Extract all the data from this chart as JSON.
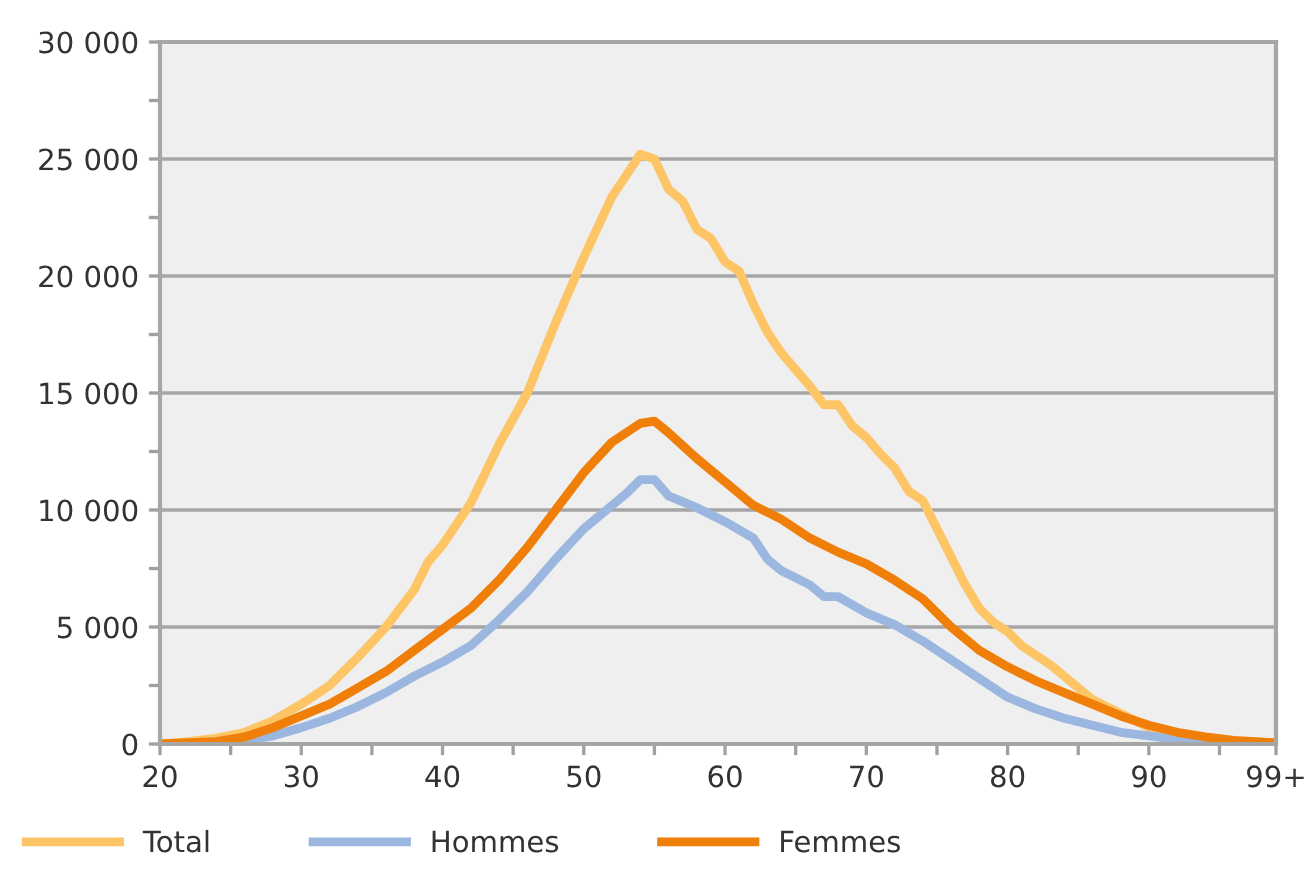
{
  "chart_data": {
    "type": "line",
    "xlim": [
      20,
      99
    ],
    "xticks": [
      20,
      {
        "value": 25,
        "label": null
      },
      30,
      {
        "value": 35,
        "label": null
      },
      40,
      {
        "value": 45,
        "label": null
      },
      50,
      {
        "value": 55,
        "label": null
      },
      60,
      {
        "value": 65,
        "label": null
      },
      70,
      {
        "value": 75,
        "label": null
      },
      80,
      {
        "value": 85,
        "label": null
      },
      90,
      {
        "value": 95,
        "label": null
      },
      {
        "value": 99,
        "label": "99+"
      }
    ],
    "ylim": [
      0,
      30000
    ],
    "yticks": [
      {
        "value": 0,
        "label": "0"
      },
      {
        "value": 2500,
        "label": null
      },
      {
        "value": 5000,
        "label": "5 000"
      },
      {
        "value": 7500,
        "label": null
      },
      {
        "value": 10000,
        "label": "10 000"
      },
      {
        "value": 12500,
        "label": null
      },
      {
        "value": 15000,
        "label": "15 000"
      },
      {
        "value": 17500,
        "label": null
      },
      {
        "value": 20000,
        "label": "20 000"
      },
      {
        "value": 22500,
        "label": null
      },
      {
        "value": 25000,
        "label": "25 000"
      },
      {
        "value": 27500,
        "label": null
      },
      {
        "value": 30000,
        "label": "30 000"
      }
    ],
    "grid": "y",
    "legend": "bottom",
    "series": [
      {
        "name": "Total",
        "color": "#fdc566",
        "x": [
          20,
          22,
          24,
          26,
          28,
          30,
          32,
          34,
          36,
          38,
          39,
          40,
          42,
          44,
          46,
          48,
          50,
          52,
          53,
          54,
          55,
          56,
          57,
          58,
          59,
          60,
          61,
          62,
          63,
          64,
          65,
          66,
          67,
          68,
          69,
          70,
          71,
          72,
          73,
          74,
          75,
          76,
          77,
          78,
          79,
          80,
          81,
          82,
          83,
          84,
          85,
          86,
          87,
          88,
          89,
          90,
          92,
          94,
          96,
          99
        ],
        "values": [
          0,
          100,
          250,
          500,
          1000,
          1700,
          2500,
          3700,
          5000,
          6600,
          7800,
          8500,
          10300,
          12800,
          15000,
          18000,
          20800,
          23400,
          24300,
          25200,
          25000,
          23700,
          23200,
          22000,
          21600,
          20600,
          20200,
          18800,
          17600,
          16700,
          16000,
          15300,
          14500,
          14500,
          13600,
          13100,
          12400,
          11800,
          10800,
          10400,
          9200,
          8000,
          6800,
          5800,
          5200,
          4800,
          4200,
          3800,
          3400,
          2900,
          2400,
          1900,
          1600,
          1300,
          1000,
          700,
          450,
          250,
          120,
          50
        ]
      },
      {
        "name": "Hommes",
        "color": "#9bb7e0",
        "x": [
          26,
          28,
          30,
          32,
          34,
          36,
          38,
          40,
          42,
          44,
          46,
          48,
          50,
          52,
          53,
          54,
          55,
          56,
          58,
          60,
          62,
          63,
          64,
          66,
          67,
          68,
          70,
          72,
          74,
          76,
          78,
          80,
          82,
          84,
          86,
          88,
          90,
          92,
          94
        ],
        "values": [
          150,
          350,
          700,
          1100,
          1600,
          2200,
          2900,
          3500,
          4200,
          5300,
          6500,
          7900,
          9200,
          10200,
          10700,
          11300,
          11300,
          10600,
          10100,
          9500,
          8800,
          7900,
          7400,
          6800,
          6300,
          6300,
          5600,
          5100,
          4400,
          3600,
          2800,
          2000,
          1500,
          1100,
          800,
          500,
          350,
          200,
          100
        ]
      },
      {
        "name": "Femmes",
        "color": "#f07f09",
        "x": [
          20,
          24,
          26,
          28,
          30,
          32,
          34,
          36,
          38,
          40,
          42,
          44,
          46,
          48,
          50,
          52,
          54,
          55,
          56,
          58,
          60,
          62,
          64,
          66,
          68,
          70,
          72,
          74,
          76,
          78,
          80,
          82,
          84,
          86,
          88,
          90,
          92,
          94,
          96,
          99
        ],
        "values": [
          0,
          100,
          300,
          700,
          1200,
          1700,
          2400,
          3100,
          4000,
          4900,
          5800,
          7000,
          8400,
          10000,
          11600,
          12900,
          13700,
          13800,
          13300,
          12200,
          11200,
          10200,
          9600,
          8800,
          8200,
          7700,
          7000,
          6200,
          5000,
          4000,
          3300,
          2700,
          2200,
          1700,
          1200,
          800,
          500,
          300,
          150,
          50
        ]
      }
    ]
  }
}
